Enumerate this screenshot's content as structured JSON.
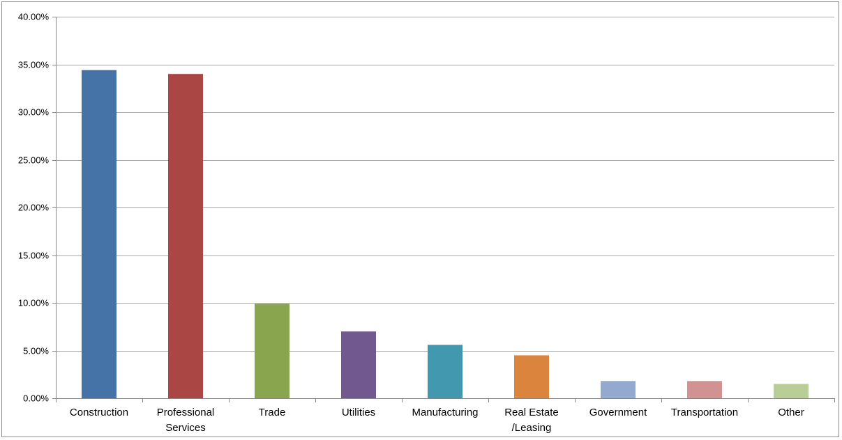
{
  "chart_data": {
    "type": "bar",
    "categories": [
      "Construction",
      "Professional Services",
      "Trade",
      "Utilities",
      "Manufacturing",
      "Real Estate /Leasing",
      "Government",
      "Transportation",
      "Other"
    ],
    "category_lines": [
      [
        "Construction"
      ],
      [
        "Professional",
        "Services"
      ],
      [
        "Trade"
      ],
      [
        "Utilities"
      ],
      [
        "Manufacturing"
      ],
      [
        "Real Estate",
        "/Leasing"
      ],
      [
        "Government"
      ],
      [
        "Transportation"
      ],
      [
        "Other"
      ]
    ],
    "values": [
      0.344,
      0.34,
      0.099,
      0.07,
      0.056,
      0.045,
      0.018,
      0.018,
      0.015
    ],
    "colors": [
      "#4572a7",
      "#aa4643",
      "#89a54e",
      "#71588f",
      "#4198af",
      "#db843d",
      "#93a9cf",
      "#d19392",
      "#b9cd96"
    ],
    "ylim": [
      0,
      0.4
    ],
    "yticks": [
      0,
      0.05,
      0.1,
      0.15,
      0.2,
      0.25,
      0.3,
      0.35,
      0.4
    ],
    "ytick_labels": [
      "0.00%",
      "5.00%",
      "10.00%",
      "15.00%",
      "20.00%",
      "25.00%",
      "30.00%",
      "35.00%",
      "40.00%"
    ],
    "title": "",
    "xlabel": "",
    "ylabel": "",
    "grid": true,
    "legend": "none"
  }
}
